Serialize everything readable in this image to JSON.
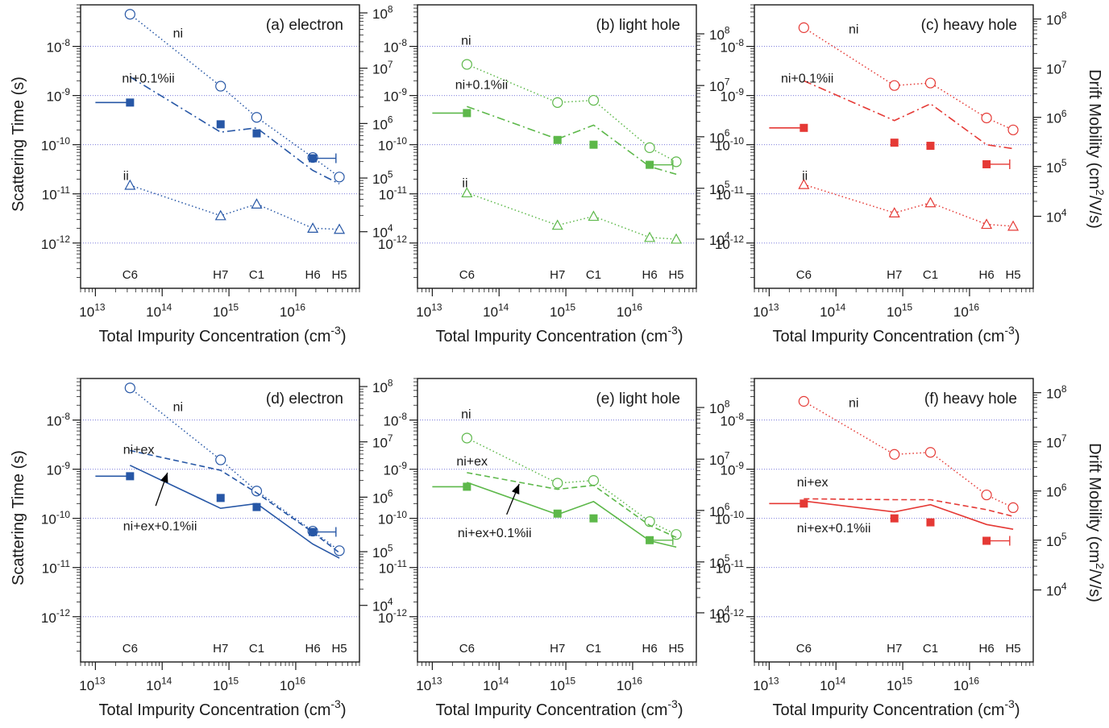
{
  "figure": {
    "xlabel": "Total Impurity Concentration (cm",
    "xlabel_sup": "-3",
    "xlabel_close": ")",
    "ylabel_left": "Scattering Time (s)",
    "ylabel_right": "Drift Mobility (cm",
    "ylabel_right_sup": "2",
    "ylabel_right_tail": "/V/s)",
    "colors": {
      "electron": "#2757a6",
      "light_hole": "#5db84a",
      "heavy_hole": "#e53935",
      "grid": "#6b6bd6",
      "arrow": "#000000"
    }
  },
  "chart_data": [
    {
      "type": "scatter",
      "panel_label": "(a) electron",
      "carrier": "electron",
      "x_scale": "log",
      "xlim": [
        6000000000000.0,
        9e+16
      ],
      "y_scale": "log",
      "ylim": [
        1.2e-13,
        7e-08
      ],
      "y2_scale": "log",
      "y2_ticks": [
        10000.0,
        100000.0,
        1000000.0,
        10000000.0,
        100000000.0
      ],
      "y2_tick_positions_in_seconds": [
        1.7e-12,
        2.1e-11,
        2.7e-10,
        3.6e-09,
        4.8e-08
      ],
      "grid": "horizontal dotted at y decades",
      "samples": [
        {
          "name": "C6",
          "x": 33000000000000.0
        },
        {
          "name": "H7",
          "x": 750000000000000.0
        },
        {
          "name": "C1",
          "x": 2600000000000000.0
        },
        {
          "name": "H6",
          "x": 1.8e+16
        },
        {
          "name": "H5",
          "x": 4.5e+16
        }
      ],
      "series": [
        {
          "name": "ni",
          "style": "dotted",
          "marker": "open-circle",
          "x": [
            33000000000000.0,
            750000000000000.0,
            2600000000000000.0,
            1.8e+16,
            4.5e+16
          ],
          "y": [
            4.5e-08,
            1.55e-09,
            3.6e-10,
            5.5e-11,
            2.2e-11
          ]
        },
        {
          "name": "ni+0.1%ii",
          "style": "dash-dot",
          "marker": "none",
          "x": [
            33000000000000.0,
            750000000000000.0,
            2600000000000000.0,
            1.8e+16,
            4.5e+16
          ],
          "y": [
            2.4e-09,
            1.8e-10,
            2.2e-10,
            3e-11,
            1.6e-11
          ]
        },
        {
          "name": "ii",
          "style": "dotted",
          "marker": "open-triangle",
          "x": [
            33000000000000.0,
            750000000000000.0,
            2600000000000000.0,
            1.8e+16,
            4.5e+16
          ],
          "y": [
            1.5e-11,
            3.6e-12,
            6.2e-12,
            2e-12,
            1.9e-12
          ]
        },
        {
          "name": "",
          "style": "none",
          "marker": "filled-square",
          "x": [
            33000000000000.0,
            750000000000000.0,
            2600000000000000.0,
            1.8e+16
          ],
          "y": [
            7.2e-10,
            2.6e-10,
            1.7e-10,
            5.3e-11
          ],
          "lead_from_x": 10000000000000.0,
          "error_to_x": 4e+16
        }
      ],
      "labels": [
        {
          "text": "ni",
          "x": 145000000000000.0,
          "y": 1.9e-08
        },
        {
          "text": "ni+0.1%ii",
          "x": 25000000000000.0,
          "y": 2.3e-09
        },
        {
          "text": "ii",
          "x": 26000000000000.0,
          "y": 2.4e-11
        }
      ]
    },
    {
      "type": "scatter",
      "panel_label": "(b) light hole",
      "carrier": "light_hole",
      "x_scale": "log",
      "xlim": [
        6000000000000.0,
        9e+16
      ],
      "y_scale": "log",
      "ylim": [
        1.2e-13,
        7e-08
      ],
      "y2_scale": "log",
      "y2_ticks": [
        10000.0,
        100000.0,
        1000000.0,
        10000000.0,
        100000000.0
      ],
      "y2_tick_positions_in_seconds": [
        1.2e-12,
        1.3e-11,
        1.45e-10,
        1.6e-09,
        1.8e-08
      ],
      "grid": "horizontal dotted at y decades",
      "samples": [
        {
          "name": "C6",
          "x": 33000000000000.0
        },
        {
          "name": "H7",
          "x": 750000000000000.0
        },
        {
          "name": "C1",
          "x": 2600000000000000.0
        },
        {
          "name": "H6",
          "x": 1.8e+16
        },
        {
          "name": "H5",
          "x": 4.5e+16
        }
      ],
      "series": [
        {
          "name": "ni",
          "style": "dotted",
          "marker": "open-circle",
          "x": [
            33000000000000.0,
            750000000000000.0,
            2600000000000000.0,
            1.8e+16,
            4.5e+16
          ],
          "y": [
            4.3e-09,
            7.2e-10,
            8e-10,
            8.7e-11,
            4.5e-11
          ]
        },
        {
          "name": "ni+0.1%ii",
          "style": "dash-dot",
          "marker": "none",
          "x": [
            33000000000000.0,
            750000000000000.0,
            2600000000000000.0,
            1.8e+16,
            4.5e+16
          ],
          "y": [
            6e-10,
            1.3e-10,
            2.5e-10,
            3.6e-11,
            2.5e-11
          ]
        },
        {
          "name": "ii",
          "style": "dotted",
          "marker": "open-triangle",
          "x": [
            33000000000000.0,
            750000000000000.0,
            2600000000000000.0,
            1.8e+16,
            4.5e+16
          ],
          "y": [
            1.05e-11,
            2.3e-12,
            3.5e-12,
            1.3e-12,
            1.2e-12
          ]
        },
        {
          "name": "",
          "style": "none",
          "marker": "filled-square",
          "x": [
            33000000000000.0,
            750000000000000.0,
            2600000000000000.0,
            1.8e+16
          ],
          "y": [
            4.4e-10,
            1.25e-10,
            1e-10,
            3.9e-11
          ],
          "lead_from_x": 10000000000000.0,
          "error_to_x": 4e+16
        }
      ],
      "labels": [
        {
          "text": "ni",
          "x": 27000000000000.0,
          "y": 1.35e-08
        },
        {
          "text": "ni+0.1%ii",
          "x": 22000000000000.0,
          "y": 1.7e-09
        },
        {
          "text": "ii",
          "x": 28000000000000.0,
          "y": 1.7e-11
        }
      ]
    },
    {
      "type": "scatter",
      "panel_label": "(c) heavy hole",
      "carrier": "heavy_hole",
      "x_scale": "log",
      "xlim": [
        6000000000000.0,
        9e+16
      ],
      "y_scale": "log",
      "ylim": [
        1.2e-13,
        7e-08
      ],
      "y2_scale": "log",
      "y2_ticks": [
        10000.0,
        100000.0,
        1000000.0,
        10000000.0,
        100000000.0
      ],
      "y2_tick_positions_in_seconds": [
        3.5e-12,
        3.6e-11,
        3.6e-10,
        3.6e-09,
        3.6e-08
      ],
      "grid": "horizontal dotted at y decades",
      "samples": [
        {
          "name": "C6",
          "x": 33000000000000.0
        },
        {
          "name": "H7",
          "x": 750000000000000.0
        },
        {
          "name": "C1",
          "x": 2600000000000000.0
        },
        {
          "name": "H6",
          "x": 1.8e+16
        },
        {
          "name": "H5",
          "x": 4.5e+16
        }
      ],
      "series": [
        {
          "name": "ni",
          "style": "dotted",
          "marker": "open-circle",
          "x": [
            33000000000000.0,
            750000000000000.0,
            2600000000000000.0,
            1.8e+16,
            4.5e+16
          ],
          "y": [
            2.4e-08,
            1.6e-09,
            1.8e-09,
            3.5e-10,
            2e-10
          ]
        },
        {
          "name": "ni+0.1%ii",
          "style": "dash-dot",
          "marker": "none",
          "x": [
            33000000000000.0,
            750000000000000.0,
            2600000000000000.0,
            1.8e+16,
            4.5e+16
          ],
          "y": [
            2e-09,
            3.1e-10,
            6.8e-10,
            1e-10,
            8.3e-11
          ]
        },
        {
          "name": "ii",
          "style": "dotted",
          "marker": "open-triangle",
          "x": [
            33000000000000.0,
            750000000000000.0,
            2600000000000000.0,
            1.8e+16,
            4.5e+16
          ],
          "y": [
            1.55e-11,
            4.1e-12,
            6.6e-12,
            2.4e-12,
            2.2e-12
          ]
        },
        {
          "name": "",
          "style": "none",
          "marker": "filled-square",
          "x": [
            33000000000000.0,
            750000000000000.0,
            2600000000000000.0,
            1.8e+16
          ],
          "y": [
            2.2e-10,
            1.1e-10,
            9.5e-11,
            4e-11
          ],
          "lead_from_x": 10000000000000.0,
          "error_to_x": 4e+16
        }
      ],
      "labels": [
        {
          "text": "ni",
          "x": 155000000000000.0,
          "y": 2.3e-08
        },
        {
          "text": "ni+0.1%ii",
          "x": 15000000000000.0,
          "y": 2.3e-09
        },
        {
          "text": "ii",
          "x": 31000000000000.0,
          "y": 2.4e-11
        }
      ]
    },
    {
      "type": "scatter",
      "panel_label": "(d) electron",
      "carrier": "electron",
      "x_scale": "log",
      "xlim": [
        6000000000000.0,
        9e+16
      ],
      "y_scale": "log",
      "ylim": [
        1.2e-13,
        7e-08
      ],
      "y2_scale": "log",
      "y2_ticks": [
        10000.0,
        100000.0,
        1000000.0,
        10000000.0,
        100000000.0
      ],
      "y2_tick_positions_in_seconds": [
        1.7e-12,
        2.1e-11,
        2.7e-10,
        3.6e-09,
        4.8e-08
      ],
      "grid": "horizontal dotted at y decades",
      "samples": [
        {
          "name": "C6",
          "x": 33000000000000.0
        },
        {
          "name": "H7",
          "x": 750000000000000.0
        },
        {
          "name": "C1",
          "x": 2600000000000000.0
        },
        {
          "name": "H6",
          "x": 1.8e+16
        },
        {
          "name": "H5",
          "x": 4.5e+16
        }
      ],
      "series": [
        {
          "name": "ni",
          "style": "dotted",
          "marker": "open-circle",
          "x": [
            33000000000000.0,
            750000000000000.0,
            2600000000000000.0,
            1.8e+16,
            4.5e+16
          ],
          "y": [
            4.5e-08,
            1.55e-09,
            3.6e-10,
            5.5e-11,
            2.2e-11
          ]
        },
        {
          "name": "ni+ex",
          "style": "dashed",
          "marker": "none",
          "x": [
            33000000000000.0,
            750000000000000.0,
            2600000000000000.0,
            1.8e+16,
            4.5e+16
          ],
          "y": [
            2.4e-09,
            9.5e-10,
            3.3e-10,
            5.2e-11,
            2e-11
          ]
        },
        {
          "name": "ni+ex+0.1%ii",
          "style": "solid",
          "marker": "none",
          "x": [
            33000000000000.0,
            750000000000000.0,
            2600000000000000.0,
            1.8e+16,
            4.5e+16
          ],
          "y": [
            1.2e-09,
            1.6e-10,
            2e-10,
            3e-11,
            1.55e-11
          ]
        },
        {
          "name": "",
          "style": "none",
          "marker": "filled-square",
          "x": [
            33000000000000.0,
            750000000000000.0,
            2600000000000000.0,
            1.8e+16
          ],
          "y": [
            7.2e-10,
            2.6e-10,
            1.7e-10,
            5.3e-11
          ],
          "lead_from_x": 10000000000000.0,
          "error_to_x": 4e+16
        }
      ],
      "labels": [
        {
          "text": "ni",
          "x": 145000000000000.0,
          "y": 1.9e-08
        },
        {
          "text": "ni+ex",
          "x": 26000000000000.0,
          "y": 2.6e-09
        },
        {
          "text": "ni+ex+0.1%ii",
          "x": 26000000000000.0,
          "y": 7.2e-11
        }
      ],
      "arrow": {
        "from": {
          "x": 80000000000000.0,
          "y": 1.8e-10
        },
        "to": {
          "x": 120000000000000.0,
          "y": 8.5e-10
        }
      }
    },
    {
      "type": "scatter",
      "panel_label": "(e) light hole",
      "carrier": "light_hole",
      "x_scale": "log",
      "xlim": [
        6000000000000.0,
        9e+16
      ],
      "y_scale": "log",
      "ylim": [
        1.2e-13,
        7e-08
      ],
      "y2_scale": "log",
      "y2_ticks": [
        10000.0,
        100000.0,
        1000000.0,
        10000000.0,
        100000000.0
      ],
      "y2_tick_positions_in_seconds": [
        1.2e-12,
        1.3e-11,
        1.45e-10,
        1.6e-09,
        1.8e-08
      ],
      "grid": "horizontal dotted at y decades",
      "samples": [
        {
          "name": "C6",
          "x": 33000000000000.0
        },
        {
          "name": "H7",
          "x": 750000000000000.0
        },
        {
          "name": "C1",
          "x": 2600000000000000.0
        },
        {
          "name": "H6",
          "x": 1.8e+16
        },
        {
          "name": "H5",
          "x": 4.5e+16
        }
      ],
      "series": [
        {
          "name": "ni",
          "style": "dotted",
          "marker": "open-circle",
          "x": [
            33000000000000.0,
            750000000000000.0,
            2600000000000000.0,
            1.8e+16,
            4.5e+16
          ],
          "y": [
            4.3e-09,
            5.2e-10,
            5.9e-10,
            8.6e-11,
            4.7e-11
          ]
        },
        {
          "name": "ni+ex",
          "style": "dashed",
          "marker": "none",
          "x": [
            33000000000000.0,
            750000000000000.0,
            2600000000000000.0,
            1.8e+16,
            4.5e+16
          ],
          "y": [
            8.5e-10,
            3.9e-10,
            4.7e-10,
            7.2e-11,
            4.1e-11
          ]
        },
        {
          "name": "ni+ex+0.1%ii",
          "style": "solid",
          "marker": "none",
          "x": [
            33000000000000.0,
            750000000000000.0,
            2600000000000000.0,
            1.8e+16,
            4.5e+16
          ],
          "y": [
            5.4e-10,
            1.2e-10,
            2.2e-10,
            3.5e-11,
            2.6e-11
          ]
        },
        {
          "name": "",
          "style": "none",
          "marker": "filled-square",
          "x": [
            33000000000000.0,
            750000000000000.0,
            2600000000000000.0,
            1.8e+16
          ],
          "y": [
            4.4e-10,
            1.25e-10,
            1e-10,
            3.6e-11
          ],
          "lead_from_x": 10000000000000.0,
          "error_to_x": 4e+16
        }
      ],
      "labels": [
        {
          "text": "ni",
          "x": 27000000000000.0,
          "y": 1.35e-08
        },
        {
          "text": "ni+ex",
          "x": 23000000000000.0,
          "y": 1.5e-09
        },
        {
          "text": "ni+ex+0.1%ii",
          "x": 24000000000000.0,
          "y": 5.2e-11
        }
      ],
      "arrow": {
        "from": {
          "x": 130000000000000.0,
          "y": 1.2e-10
        },
        "to": {
          "x": 200000000000000.0,
          "y": 5e-10
        }
      }
    },
    {
      "type": "scatter",
      "panel_label": "(f) heavy hole",
      "carrier": "heavy_hole",
      "x_scale": "log",
      "xlim": [
        6000000000000.0,
        9e+16
      ],
      "y_scale": "log",
      "ylim": [
        1.2e-13,
        7e-08
      ],
      "y2_scale": "log",
      "y2_ticks": [
        10000.0,
        100000.0,
        1000000.0,
        10000000.0,
        100000000.0
      ],
      "y2_tick_positions_in_seconds": [
        3.5e-12,
        3.6e-11,
        3.6e-10,
        3.6e-09,
        3.6e-08
      ],
      "grid": "horizontal dotted at y decades",
      "samples": [
        {
          "name": "C6",
          "x": 33000000000000.0
        },
        {
          "name": "H7",
          "x": 750000000000000.0
        },
        {
          "name": "C1",
          "x": 2600000000000000.0
        },
        {
          "name": "H6",
          "x": 1.8e+16
        },
        {
          "name": "H5",
          "x": 4.5e+16
        }
      ],
      "series": [
        {
          "name": "ni",
          "style": "dotted",
          "marker": "open-circle",
          "x": [
            33000000000000.0,
            750000000000000.0,
            2600000000000000.0,
            1.8e+16,
            4.5e+16
          ],
          "y": [
            2.4e-08,
            2e-09,
            2.2e-09,
            3e-10,
            1.65e-10
          ]
        },
        {
          "name": "ni+ex",
          "style": "dashed",
          "marker": "none",
          "x": [
            33000000000000.0,
            750000000000000.0,
            2600000000000000.0,
            1.8e+16,
            4.5e+16
          ],
          "y": [
            2.5e-10,
            2.4e-10,
            2.4e-10,
            1.5e-10,
            1.1e-10
          ]
        },
        {
          "name": "ni+ex+0.1%ii",
          "style": "solid",
          "marker": "none",
          "x": [
            33000000000000.0,
            750000000000000.0,
            2600000000000000.0,
            1.8e+16,
            4.5e+16
          ],
          "y": [
            2.25e-10,
            1.35e-10,
            1.9e-10,
            7.5e-11,
            6e-11
          ]
        },
        {
          "name": "",
          "style": "none",
          "marker": "filled-square",
          "x": [
            33000000000000.0,
            750000000000000.0,
            2600000000000000.0,
            1.8e+16
          ],
          "y": [
            2e-10,
            1e-10,
            8.3e-11,
            3.5e-11
          ],
          "lead_from_x": 10000000000000.0,
          "error_to_x": 4e+16
        }
      ],
      "labels": [
        {
          "text": "ni",
          "x": 155000000000000.0,
          "y": 2.3e-08
        },
        {
          "text": "ni+ex",
          "x": 26000000000000.0,
          "y": 5.6e-10
        },
        {
          "text": "ni+ex+0.1%ii",
          "x": 26000000000000.0,
          "y": 6.5e-11
        }
      ]
    }
  ]
}
